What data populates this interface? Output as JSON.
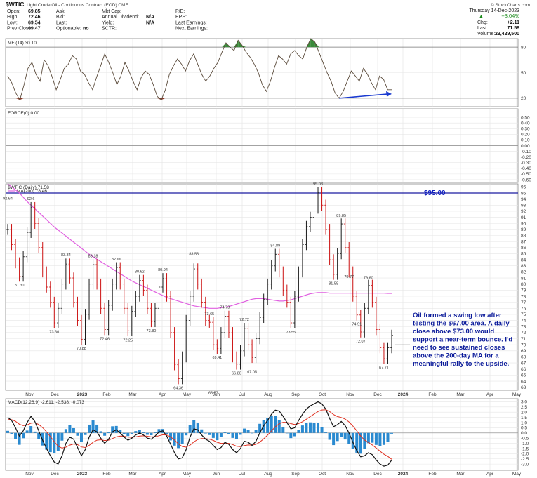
{
  "header": {
    "symbol": "$WTIC",
    "name": "Light Crude Oil - Continuous Contract (EOD) CME",
    "copyright": "© StockCharts.com",
    "date": "Thursday 14-Dec-2023",
    "quote_left": [
      {
        "label": "Open:",
        "value": "69.85"
      },
      {
        "label": "High:",
        "value": "72.46"
      },
      {
        "label": "Low:",
        "value": "69.54"
      },
      {
        "label": "Prev Close:",
        "value": "69.47"
      }
    ],
    "quote_mid": [
      {
        "label": "Ask:",
        "value": ""
      },
      {
        "label": "Bid:",
        "value": ""
      },
      {
        "label": "Last:",
        "value": ""
      },
      {
        "label": "Optionable:",
        "value": "no"
      }
    ],
    "quote_mid2": [
      {
        "label": "Mkt Cap:",
        "value": ""
      },
      {
        "label": "Annual Dividend:",
        "value": "N/A"
      },
      {
        "label": "Yield:",
        "value": "N/A"
      },
      {
        "label": "SCTR:",
        "value": ""
      }
    ],
    "quote_right": [
      {
        "label": "P/E:",
        "value": ""
      },
      {
        "label": "EPS:",
        "value": ""
      },
      {
        "label": "Last Earnings:",
        "value": ""
      },
      {
        "label": "Next Earnings:",
        "value": ""
      }
    ],
    "change_pct": "+3.04%",
    "chg_label": "Chg:",
    "chg_value": "+2.11",
    "last_label": "Last:",
    "last_value": "71.58",
    "volume_label": "Volume:",
    "volume_value": "23,429,500"
  },
  "colors": {
    "price_up": "#1a1a1a",
    "price_down": "#cc1111",
    "ma200": "#e060e0",
    "level": "#1a1aa0",
    "mfi_line": "#5a4a3a",
    "mfi_overbought": "#3a8a3a",
    "mfi_oversold": "#8a3a2a",
    "macd_line": "#111111",
    "signal_line": "#e03020",
    "histogram": "#2a8ad0",
    "arrow": "#1a3ad0"
  },
  "chart_data": [
    {
      "panel": "mfi",
      "type": "line",
      "title": "MFI(14) 30.10",
      "ylim": [
        10,
        90
      ],
      "yticks": [
        20,
        50,
        80
      ],
      "reference_lines": [
        20,
        80
      ],
      "values": [
        46,
        38,
        26,
        18,
        35,
        55,
        62,
        48,
        40,
        65,
        58,
        45,
        30,
        42,
        55,
        60,
        70,
        66,
        52,
        48,
        38,
        30,
        45,
        58,
        72,
        62,
        50,
        36,
        46,
        62,
        52,
        40,
        30,
        44,
        52,
        48,
        36,
        22,
        18,
        30,
        48,
        58,
        66,
        60,
        52,
        64,
        72,
        60,
        48,
        40,
        46,
        55,
        62,
        74,
        85,
        80,
        76,
        88,
        82,
        74,
        68,
        60,
        50,
        36,
        28,
        40,
        56,
        70,
        66,
        60,
        72,
        76,
        70,
        66,
        80,
        90,
        86,
        74,
        62,
        50,
        40,
        26,
        20,
        28,
        40,
        52,
        46,
        40,
        55,
        48,
        38,
        30,
        46,
        42,
        30,
        30
      ],
      "annotation_arrow": {
        "from_x": 82,
        "from_y": 20,
        "to_x": 95,
        "to_y": 25
      }
    },
    {
      "panel": "force",
      "type": "line",
      "title": "FORCE(0) 0.00",
      "ylim": [
        -0.65,
        0.65
      ],
      "yticks": [
        0.5,
        0.4,
        0.3,
        0.2,
        0.1,
        0.0,
        -0.1,
        -0.2,
        -0.3,
        -0.4,
        -0.5,
        -0.6
      ],
      "values": []
    },
    {
      "panel": "price",
      "type": "bar",
      "title": "$WTIC (Daily) 71.58",
      "legend": [
        "MA(200) 78.46"
      ],
      "ylim": [
        62.5,
        96.5
      ],
      "yticks": [
        63,
        64,
        65,
        66,
        67,
        68,
        69,
        70,
        71,
        72,
        73,
        74,
        75,
        76,
        77,
        78,
        79,
        80,
        81,
        82,
        83,
        84,
        85,
        86,
        87,
        88,
        89,
        90,
        91,
        92,
        93,
        94,
        95,
        96
      ],
      "close": [
        89,
        86.5,
        83.5,
        81.3,
        84.5,
        88.5,
        92.6,
        90,
        86,
        82,
        79.5,
        77,
        73.6,
        76,
        80,
        83.3,
        81,
        77,
        74,
        70.9,
        75,
        80,
        83.2,
        80,
        76,
        72.5,
        76.5,
        80,
        82.7,
        80,
        76,
        72.3,
        75.5,
        78,
        80.6,
        79,
        76,
        73.8,
        76,
        79.5,
        80.9,
        78,
        72,
        66.7,
        64.4,
        68,
        74,
        78,
        82.5,
        80,
        77,
        74,
        73.7,
        70,
        69.4,
        72,
        74.7,
        72,
        68,
        66.8,
        69,
        72.7,
        70,
        67.9,
        71,
        74.5,
        77.5,
        80,
        83,
        84.9,
        82,
        79,
        77,
        73.6,
        78,
        82,
        86.5,
        89.5,
        91,
        92.5,
        95.03,
        93,
        89,
        84,
        81.6,
        85,
        89.9,
        86,
        82,
        78,
        74.9,
        72.1,
        76,
        79.8,
        77,
        72.5,
        69.5,
        67.7,
        69.5,
        71.58
      ],
      "ma200": [
        96.5,
        96,
        95.5,
        95,
        94.3,
        93.6,
        93,
        92.4,
        91.8,
        91.2,
        90.6,
        90,
        89.4,
        88.9,
        88.4,
        87.9,
        87.4,
        86.9,
        86.4,
        85.9,
        85.4,
        84.9,
        84.5,
        84.1,
        83.7,
        83.3,
        82.9,
        82.5,
        82.1,
        81.7,
        81.3,
        80.9,
        80.5,
        80.2,
        79.9,
        79.6,
        79.3,
        79,
        78.7,
        78.4,
        78.1,
        77.8,
        77.6,
        77.4,
        77.2,
        77,
        76.8,
        76.6,
        76.4,
        76.3,
        76.2,
        76.1,
        76,
        76,
        76,
        76.1,
        76.2,
        76.3,
        76.5,
        76.7,
        76.9,
        77.1,
        77.3,
        77.5,
        77.6,
        77.6,
        77.6,
        77.5,
        77.4,
        77.3,
        77.2,
        77.2,
        77.3,
        77.4,
        77.6,
        77.8,
        78,
        78.2,
        78.4,
        78.5,
        78.6,
        78.6,
        78.6,
        78.5,
        78.5,
        78.5,
        78.5,
        78.5,
        78.5,
        78.5,
        78.5,
        78.5,
        78.5,
        78.5,
        78.5,
        78.5,
        78.5,
        78.5,
        78.46,
        78.46
      ],
      "labels": [
        {
          "i": 0,
          "v": 92.64,
          "text": "92.64",
          "pos": "above"
        },
        {
          "i": 3,
          "v": 81.3,
          "text": "81.30",
          "pos": "below"
        },
        {
          "i": 6,
          "v": 92.6,
          "text": "92.6",
          "pos": "above"
        },
        {
          "i": 12,
          "v": 73.6,
          "text": "73.60",
          "pos": "below"
        },
        {
          "i": 15,
          "v": 83.34,
          "text": "83.34",
          "pos": "above"
        },
        {
          "i": 19,
          "v": 70.88,
          "text": "70.88",
          "pos": "below"
        },
        {
          "i": 22,
          "v": 83.18,
          "text": "83.18",
          "pos": "above"
        },
        {
          "i": 25,
          "v": 72.46,
          "text": "72.46",
          "pos": "below"
        },
        {
          "i": 28,
          "v": 82.66,
          "text": "82.66",
          "pos": "above"
        },
        {
          "i": 31,
          "v": 72.25,
          "text": "72.25",
          "pos": "below"
        },
        {
          "i": 34,
          "v": 80.62,
          "text": "80.62",
          "pos": "above"
        },
        {
          "i": 37,
          "v": 73.8,
          "text": "73.80",
          "pos": "below"
        },
        {
          "i": 40,
          "v": 80.94,
          "text": "80.94",
          "pos": "above"
        },
        {
          "i": 44,
          "v": 64.36,
          "text": "64.36",
          "pos": "below"
        },
        {
          "i": 48,
          "v": 83.53,
          "text": "83.53",
          "pos": "above"
        },
        {
          "i": 52,
          "v": 73.65,
          "text": "73.65",
          "pos": "above"
        },
        {
          "i": 53,
          "v": 63.57,
          "text": "63.57",
          "pos": "below"
        },
        {
          "i": 54,
          "v": 69.41,
          "text": "69.41",
          "pos": "below"
        },
        {
          "i": 56,
          "v": 74.73,
          "text": "74.73",
          "pos": "above"
        },
        {
          "i": 59,
          "v": 66.8,
          "text": "66.80",
          "pos": "below"
        },
        {
          "i": 61,
          "v": 72.72,
          "text": "72.72",
          "pos": "above"
        },
        {
          "i": 63,
          "v": 67.05,
          "text": "67.05",
          "pos": "below"
        },
        {
          "i": 69,
          "v": 84.89,
          "text": "84.89",
          "pos": "above"
        },
        {
          "i": 73,
          "v": 73.55,
          "text": "73.55",
          "pos": "below"
        },
        {
          "i": 80,
          "v": 95.03,
          "text": "95.03",
          "pos": "above"
        },
        {
          "i": 84,
          "v": 81.58,
          "text": "81.58",
          "pos": "below"
        },
        {
          "i": 86,
          "v": 89.85,
          "text": "89.85",
          "pos": "above"
        },
        {
          "i": 88,
          "v": 79.77,
          "text": "79.77",
          "pos": "above"
        },
        {
          "i": 90,
          "v": 74.91,
          "text": "74.91",
          "pos": "below"
        },
        {
          "i": 91,
          "v": 72.07,
          "text": "72.07",
          "pos": "below"
        },
        {
          "i": 93,
          "v": 79.6,
          "text": "79.60",
          "pos": "above"
        },
        {
          "i": 97,
          "v": 67.71,
          "text": "67.71",
          "pos": "below"
        }
      ],
      "level_line": {
        "value": 95.0,
        "label": "$95.00"
      },
      "note": [
        "Oil formed a swing low after",
        "testing the $67.00 area. A daily",
        "close above $73.00 would",
        "support a near-term bounce. I'd",
        "need to see sustained closes",
        "above the 200-day MA for a",
        "meaningful rally to the upside."
      ]
    },
    {
      "panel": "macd",
      "type": "line",
      "title": "MACD(12,26,9) -2.611, -2.538, -0.073",
      "ylim": [
        -3.6,
        3.3
      ],
      "yticks": [
        3.0,
        2.5,
        2.0,
        1.5,
        1.0,
        0.5,
        0.0,
        -0.5,
        -1.0,
        -1.5,
        -2.0,
        -2.5,
        -3.0
      ],
      "macd": [
        1.5,
        1.2,
        0.5,
        -0.3,
        0.2,
        1.0,
        1.6,
        1.1,
        0.2,
        -0.7,
        -1.5,
        -2.2,
        -2.8,
        -3.0,
        -2.2,
        -1.0,
        -0.4,
        -0.6,
        -1.4,
        -2.2,
        -1.6,
        -0.4,
        0.3,
        0.1,
        -0.5,
        -1.0,
        -0.6,
        0.1,
        0.3,
        0.0,
        -0.4,
        -0.7,
        -0.5,
        -0.2,
        0.0,
        -0.2,
        -0.5,
        -0.6,
        -0.3,
        0.1,
        0.2,
        -0.3,
        -1.1,
        -1.9,
        -2.5,
        -2.4,
        -1.6,
        -0.4,
        0.4,
        0.3,
        -0.2,
        -0.6,
        -0.8,
        -1.2,
        -1.6,
        -1.4,
        -0.9,
        -1.1,
        -1.6,
        -1.9,
        -1.5,
        -0.8,
        -0.9,
        -1.2,
        -0.8,
        0.0,
        0.7,
        1.2,
        1.8,
        2.2,
        2.1,
        1.6,
        1.0,
        0.4,
        0.5,
        1.2,
        1.8,
        2.3,
        2.6,
        2.8,
        3.0,
        2.8,
        2.3,
        1.4,
        0.6,
        0.8,
        1.1,
        0.7,
        0.0,
        -0.9,
        -1.7,
        -2.3,
        -2.2,
        -1.9,
        -2.1,
        -2.6,
        -3.0,
        -3.2,
        -3.1,
        -2.611
      ],
      "signal": [
        1.3,
        1.28,
        1.12,
        0.84,
        0.71,
        0.77,
        0.94,
        0.97,
        0.82,
        0.51,
        0.11,
        -0.35,
        -0.84,
        -1.27,
        -1.46,
        -1.37,
        -1.17,
        -1.06,
        -1.13,
        -1.35,
        -1.4,
        -1.2,
        -0.9,
        -0.7,
        -0.66,
        -0.73,
        -0.7,
        -0.54,
        -0.37,
        -0.3,
        -0.32,
        -0.4,
        -0.42,
        -0.38,
        -0.3,
        -0.28,
        -0.32,
        -0.38,
        -0.36,
        -0.27,
        -0.18,
        -0.2,
        -0.38,
        -0.68,
        -1.04,
        -1.31,
        -1.37,
        -1.18,
        -0.86,
        -0.63,
        -0.54,
        -0.55,
        -0.6,
        -0.72,
        -0.9,
        -1.0,
        -0.98,
        -1.0,
        -1.12,
        -1.28,
        -1.32,
        -1.22,
        -1.16,
        -1.17,
        -1.1,
        -0.88,
        -0.56,
        -0.21,
        0.19,
        0.59,
        0.89,
        1.03,
        1.02,
        0.9,
        0.82,
        0.9,
        1.08,
        1.32,
        1.58,
        1.82,
        2.06,
        2.21,
        2.23,
        2.06,
        1.77,
        1.58,
        1.49,
        1.33,
        1.06,
        0.67,
        0.2,
        -0.3,
        -0.68,
        -0.92,
        -1.16,
        -1.45,
        -1.76,
        -2.05,
        -2.26,
        -2.538
      ]
    }
  ],
  "x_axis": {
    "labels": [
      "Nov",
      "Dec",
      "2023",
      "Feb",
      "Mar",
      "Apr",
      "May",
      "Jun",
      "Jul",
      "Aug",
      "Sep",
      "Oct",
      "Nov",
      "Dec",
      "2024",
      "Feb",
      "Mar",
      "Apr",
      "May"
    ],
    "bold": [
      "2023",
      "2024"
    ]
  }
}
